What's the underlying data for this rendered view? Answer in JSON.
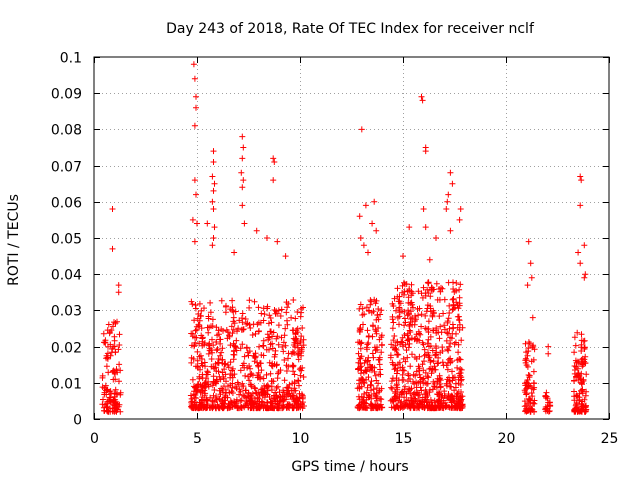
{
  "chart_data": {
    "type": "scatter",
    "title": "Day 243 of 2018, Rate Of TEC Index for receiver nclf",
    "xlabel": "GPS time / hours",
    "ylabel": "ROTI / TECUs",
    "xlim": [
      0,
      25
    ],
    "ylim": [
      0,
      0.1
    ],
    "xticks": [
      0,
      5,
      10,
      15,
      20,
      25
    ],
    "xtick_labels": [
      "0",
      "5",
      "10",
      "15",
      "20",
      "25"
    ],
    "yticks": [
      0,
      0.01,
      0.02,
      0.03,
      0.04,
      0.05,
      0.06,
      0.07,
      0.08,
      0.09,
      0.1
    ],
    "ytick_labels": [
      "0",
      "0.01",
      "0.02",
      "0.03",
      "0.04",
      "0.05",
      "0.06",
      "0.07",
      "0.08",
      "0.09",
      "0.1"
    ],
    "grid": true,
    "marker": "+",
    "color": "#ff0000",
    "clusters": [
      {
        "x_range": [
          0.4,
          1.3
        ],
        "n": 120,
        "y_base": 0.002,
        "y_spread": 0.025,
        "outliers": [
          [
            0.9,
            0.058
          ],
          [
            0.9,
            0.047
          ],
          [
            1.2,
            0.037
          ],
          [
            1.2,
            0.035
          ]
        ]
      },
      {
        "x_range": [
          4.7,
          5.4
        ],
        "n": 140,
        "y_base": 0.003,
        "y_spread": 0.03,
        "outliers": [
          [
            4.85,
            0.098
          ],
          [
            4.9,
            0.094
          ],
          [
            4.95,
            0.089
          ],
          [
            4.95,
            0.086
          ],
          [
            4.9,
            0.081
          ],
          [
            4.9,
            0.066
          ],
          [
            4.95,
            0.062
          ],
          [
            4.8,
            0.055
          ],
          [
            5.0,
            0.054
          ],
          [
            4.9,
            0.049
          ]
        ]
      },
      {
        "x_range": [
          5.4,
          10.2
        ],
        "n": 700,
        "y_base": 0.003,
        "y_spread": 0.03,
        "outliers": [
          [
            5.8,
            0.074
          ],
          [
            5.8,
            0.071
          ],
          [
            5.75,
            0.067
          ],
          [
            5.85,
            0.065
          ],
          [
            5.8,
            0.063
          ],
          [
            5.75,
            0.06
          ],
          [
            5.8,
            0.058
          ],
          [
            5.85,
            0.053
          ],
          [
            5.8,
            0.05
          ],
          [
            5.75,
            0.048
          ],
          [
            7.2,
            0.078
          ],
          [
            7.25,
            0.075
          ],
          [
            7.2,
            0.072
          ],
          [
            7.15,
            0.068
          ],
          [
            7.25,
            0.066
          ],
          [
            7.2,
            0.064
          ],
          [
            7.2,
            0.059
          ],
          [
            7.3,
            0.054
          ],
          [
            8.7,
            0.072
          ],
          [
            8.75,
            0.071
          ],
          [
            8.7,
            0.066
          ],
          [
            6.8,
            0.046
          ],
          [
            7.9,
            0.052
          ],
          [
            8.4,
            0.05
          ],
          [
            8.9,
            0.049
          ],
          [
            9.3,
            0.045
          ],
          [
            5.5,
            0.054
          ]
        ]
      },
      {
        "x_range": [
          12.8,
          14.0
        ],
        "n": 200,
        "y_base": 0.003,
        "y_spread": 0.03,
        "outliers": [
          [
            13.0,
            0.08
          ],
          [
            12.9,
            0.056
          ],
          [
            13.2,
            0.059
          ],
          [
            13.6,
            0.06
          ],
          [
            13.5,
            0.054
          ],
          [
            13.7,
            0.052
          ],
          [
            12.95,
            0.05
          ],
          [
            13.1,
            0.048
          ],
          [
            13.3,
            0.046
          ]
        ]
      },
      {
        "x_range": [
          14.4,
          17.9
        ],
        "n": 650,
        "y_base": 0.003,
        "y_spread": 0.035,
        "outliers": [
          [
            15.9,
            0.089
          ],
          [
            15.95,
            0.088
          ],
          [
            16.1,
            0.075
          ],
          [
            16.1,
            0.074
          ],
          [
            17.3,
            0.068
          ],
          [
            17.4,
            0.065
          ],
          [
            17.2,
            0.062
          ],
          [
            17.15,
            0.06
          ],
          [
            17.1,
            0.058
          ],
          [
            17.8,
            0.058
          ],
          [
            17.75,
            0.055
          ],
          [
            16.0,
            0.058
          ],
          [
            16.1,
            0.053
          ],
          [
            15.3,
            0.053
          ],
          [
            17.3,
            0.052
          ],
          [
            16.6,
            0.05
          ],
          [
            15.0,
            0.045
          ],
          [
            16.3,
            0.044
          ]
        ]
      },
      {
        "x_range": [
          20.9,
          21.4
        ],
        "n": 80,
        "y_base": 0.002,
        "y_spread": 0.02,
        "outliers": [
          [
            21.1,
            0.049
          ],
          [
            21.2,
            0.043
          ],
          [
            21.25,
            0.039
          ],
          [
            21.05,
            0.037
          ],
          [
            21.3,
            0.028
          ]
        ]
      },
      {
        "x_range": [
          21.9,
          22.2
        ],
        "n": 25,
        "y_base": 0.002,
        "y_spread": 0.006,
        "outliers": [
          [
            22.05,
            0.02
          ],
          [
            22.05,
            0.018
          ]
        ]
      },
      {
        "x_range": [
          23.3,
          23.9
        ],
        "n": 120,
        "y_base": 0.002,
        "y_spread": 0.022,
        "outliers": [
          [
            23.6,
            0.067
          ],
          [
            23.65,
            0.066
          ],
          [
            23.6,
            0.059
          ],
          [
            23.8,
            0.048
          ],
          [
            23.5,
            0.046
          ],
          [
            23.6,
            0.043
          ],
          [
            23.85,
            0.04
          ],
          [
            23.8,
            0.039
          ]
        ]
      }
    ]
  }
}
